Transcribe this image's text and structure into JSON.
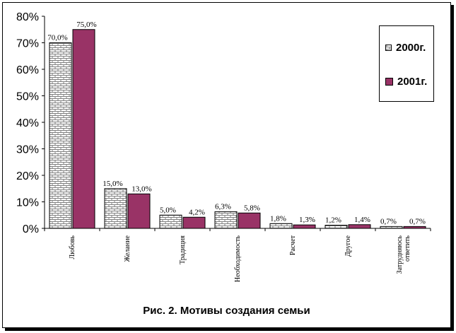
{
  "caption": "Рис. 2. Мотивы создания семьи",
  "legend": {
    "items": [
      {
        "label": "2000г.",
        "pattern": "brick"
      },
      {
        "label": "2001г.",
        "color": "#993366"
      }
    ]
  },
  "colors": {
    "series_2000_fill": "#ffffff",
    "series_2000_pattern": "#808080",
    "series_2001": "#993366"
  },
  "chart_data": {
    "type": "bar",
    "title": "Рис. 2. Мотивы создания семьи",
    "categories": [
      "Любовь",
      "Желание",
      "Традиция",
      "Необходимость",
      "Расчет",
      "Другое",
      "Затрудняюсь ответить"
    ],
    "series": [
      {
        "name": "2000г.",
        "values": [
          70.0,
          15.0,
          5.0,
          6.3,
          1.8,
          1.2,
          0.7
        ],
        "labels": [
          "70,0%",
          "15,0%",
          "5,0%",
          "6,3%",
          "1,8%",
          "1,2%",
          "0,7%"
        ]
      },
      {
        "name": "2001г.",
        "values": [
          75.0,
          13.0,
          4.2,
          5.8,
          1.3,
          1.4,
          0.7
        ],
        "labels": [
          "75,0%",
          "13,0%",
          "4,2%",
          "5,8%",
          "1,3%",
          "1,4%",
          "0,7%"
        ]
      }
    ],
    "yticks": [
      "0%",
      "10%",
      "20%",
      "30%",
      "40%",
      "50%",
      "60%",
      "70%",
      "80%"
    ],
    "ylim": [
      0,
      80
    ],
    "grid": false,
    "legend_position": "top-right"
  }
}
